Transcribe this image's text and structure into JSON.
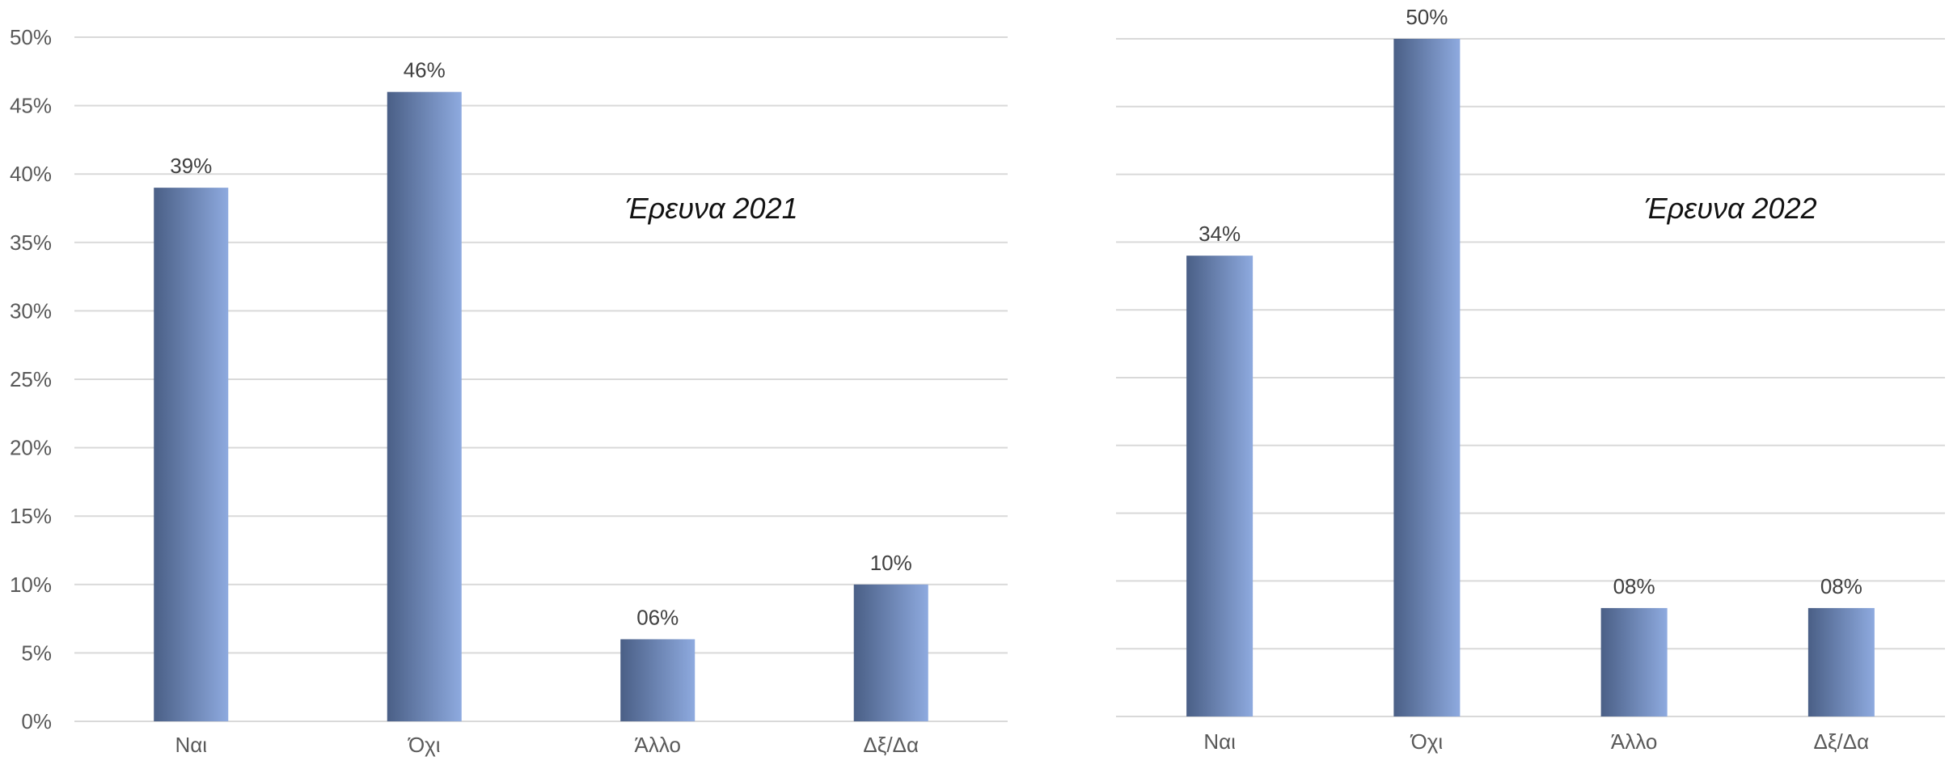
{
  "chart_data": [
    {
      "type": "bar",
      "title": "Έρευνα 2021",
      "categories": [
        "Ναι",
        "Όχι",
        "Άλλο",
        "Δξ/Δα"
      ],
      "values": [
        0.39,
        0.46,
        0.06,
        0.1
      ],
      "data_labels": [
        "39%",
        "46%",
        "06%",
        "10%"
      ],
      "ylim": [
        0,
        0.5
      ],
      "yticks": [
        0,
        0.05,
        0.1,
        0.15,
        0.2,
        0.25,
        0.3,
        0.35,
        0.4,
        0.45,
        0.5
      ],
      "ytick_labels": [
        "0%",
        "5%",
        "10%",
        "15%",
        "20%",
        "25%",
        "30%",
        "35%",
        "40%",
        "45%",
        "50%"
      ],
      "show_y_tick_labels": true,
      "grid": true,
      "bar_gradient": [
        "#4a5f86",
        "#8eaadf"
      ]
    },
    {
      "type": "bar",
      "title": "Έρευνα 2022",
      "categories": [
        "Ναι",
        "Όχι",
        "Άλλο",
        "Δξ/Δα"
      ],
      "values": [
        0.34,
        0.5,
        0.08,
        0.08
      ],
      "data_labels": [
        "34%",
        "50%",
        "08%",
        "08%"
      ],
      "ylim": [
        0,
        0.5
      ],
      "yticks": [
        0,
        0.05,
        0.1,
        0.15,
        0.2,
        0.25,
        0.3,
        0.35,
        0.4,
        0.45,
        0.5
      ],
      "show_y_tick_labels": false,
      "grid": true,
      "bar_gradient": [
        "#4a5f86",
        "#8eaadf"
      ]
    }
  ]
}
